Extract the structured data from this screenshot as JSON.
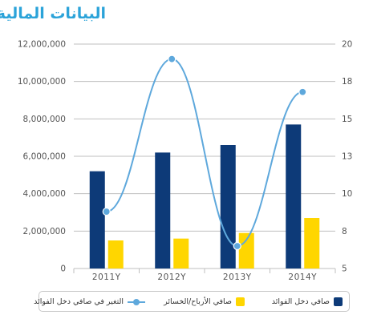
{
  "title": "البيانات المالية",
  "colors": {
    "title": "#2ba3d9",
    "axis_text": "#555555",
    "grid": "#bfbfbf"
  },
  "chart_data": {
    "type": "bar",
    "categories": [
      "2011Y",
      "2012Y",
      "2013Y",
      "2014Y"
    ],
    "series": [
      {
        "name": "صافي دخل الفوائد",
        "type": "bar",
        "axis": "left",
        "color": "#0d3a78",
        "values": [
          5200000,
          6200000,
          6600000,
          7700000
        ]
      },
      {
        "name": "صافي الأرباح/الخسائر",
        "type": "bar",
        "axis": "left",
        "color": "#ffd600",
        "values": [
          1500000,
          1600000,
          1900000,
          2700000
        ]
      },
      {
        "name": "التغير في صافي دخل الفوائد",
        "type": "line",
        "axis": "right",
        "color": "#5ea8dc",
        "values": [
          8.8,
          19,
          6.5,
          16.8
        ]
      }
    ],
    "y_left": {
      "min": 0,
      "max": 12000000,
      "ticks": [
        0,
        2000000,
        4000000,
        6000000,
        8000000,
        10000000,
        12000000
      ],
      "tick_labels": [
        "0",
        "2,000,000",
        "4,000,000",
        "6,000,000",
        "8,000,000",
        "10,000,000",
        "12,000,000"
      ]
    },
    "y_right": {
      "min": 5,
      "max": 20,
      "ticks": [
        5,
        7.5,
        10,
        12.5,
        15,
        17.5,
        20
      ],
      "tick_labels": [
        "5",
        "8",
        "10",
        "13",
        "15",
        "18",
        "20"
      ]
    },
    "grid": true,
    "legend_position": "bottom"
  }
}
